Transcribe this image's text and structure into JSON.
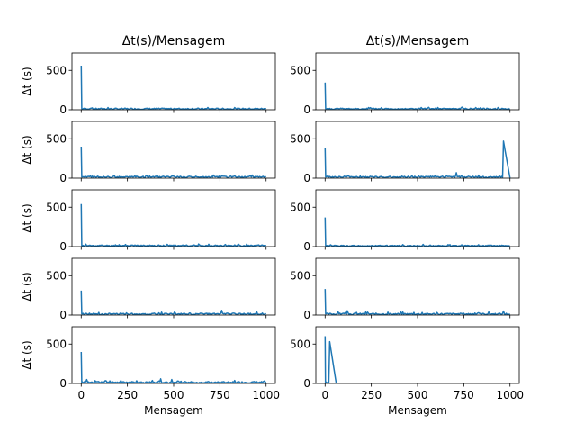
{
  "figure": {
    "series_color": "#1f77b4",
    "column_titles": [
      "Δt(s)/Mensagem",
      "Δt(s)/Mensagem"
    ],
    "ylabel": "Δt (s)",
    "xlabel": "Mensagem",
    "x_ticks": [
      0,
      250,
      500,
      750,
      1000
    ],
    "x_tick_labels": [
      "0",
      "250",
      "500",
      "750",
      "1000"
    ]
  },
  "chart_data": [
    {
      "type": "line",
      "row": 0,
      "col": 0,
      "xlim": [
        -50,
        1050
      ],
      "ylim": [
        0,
        720
      ],
      "y_ticks": [
        0,
        500
      ],
      "y_tick_labels": [
        "0",
        "500"
      ],
      "baseline": 12,
      "noise": 8,
      "peaks": [
        [
          0,
          560
        ],
        [
          3,
          10
        ]
      ],
      "tail": []
    },
    {
      "type": "line",
      "row": 0,
      "col": 1,
      "xlim": [
        -50,
        1050
      ],
      "ylim": [
        0,
        720
      ],
      "y_ticks": [
        0,
        500
      ],
      "y_tick_labels": [
        "0",
        "500"
      ],
      "baseline": 12,
      "noise": 8,
      "peaks": [
        [
          0,
          345
        ],
        [
          3,
          10
        ]
      ],
      "tail": []
    },
    {
      "type": "line",
      "row": 1,
      "col": 0,
      "xlim": [
        -50,
        1050
      ],
      "ylim": [
        0,
        720
      ],
      "y_ticks": [
        0,
        500
      ],
      "y_tick_labels": [
        "0",
        "500"
      ],
      "baseline": 15,
      "noise": 10,
      "peaks": [
        [
          0,
          400
        ],
        [
          3,
          12
        ]
      ],
      "tail": []
    },
    {
      "type": "line",
      "row": 1,
      "col": 1,
      "xlim": [
        -50,
        1050
      ],
      "ylim": [
        0,
        720
      ],
      "y_ticks": [
        0,
        500
      ],
      "y_tick_labels": [
        "0",
        "500"
      ],
      "baseline": 15,
      "noise": 10,
      "peaks": [
        [
          0,
          380
        ],
        [
          3,
          12
        ],
        [
          710,
          70
        ],
        [
          960,
          10
        ]
      ],
      "tail": [
        [
          965,
          470
        ],
        [
          975,
          330
        ],
        [
          1000,
          5
        ]
      ]
    },
    {
      "type": "line",
      "row": 2,
      "col": 0,
      "xlim": [
        -50,
        1050
      ],
      "ylim": [
        0,
        720
      ],
      "y_ticks": [
        0,
        500
      ],
      "y_tick_labels": [
        "0",
        "500"
      ],
      "baseline": 12,
      "noise": 8,
      "peaks": [
        [
          0,
          540
        ],
        [
          3,
          10
        ]
      ],
      "tail": []
    },
    {
      "type": "line",
      "row": 2,
      "col": 1,
      "xlim": [
        -50,
        1050
      ],
      "ylim": [
        0,
        720
      ],
      "y_ticks": [
        0,
        500
      ],
      "y_tick_labels": [
        "0",
        "500"
      ],
      "baseline": 10,
      "noise": 7,
      "peaks": [
        [
          0,
          370
        ],
        [
          3,
          10
        ]
      ],
      "tail": []
    },
    {
      "type": "line",
      "row": 3,
      "col": 0,
      "xlim": [
        -50,
        1050
      ],
      "ylim": [
        0,
        720
      ],
      "y_ticks": [
        0,
        500
      ],
      "y_tick_labels": [
        "0",
        "500"
      ],
      "baseline": 14,
      "noise": 10,
      "peaks": [
        [
          0,
          310
        ],
        [
          3,
          12
        ],
        [
          760,
          60
        ]
      ],
      "tail": []
    },
    {
      "type": "line",
      "row": 3,
      "col": 1,
      "xlim": [
        -50,
        1050
      ],
      "ylim": [
        0,
        720
      ],
      "y_ticks": [
        0,
        500
      ],
      "y_tick_labels": [
        "0",
        "500"
      ],
      "baseline": 14,
      "noise": 10,
      "peaks": [
        [
          0,
          330
        ],
        [
          3,
          12
        ],
        [
          120,
          55
        ],
        [
          965,
          50
        ]
      ],
      "tail": []
    },
    {
      "type": "line",
      "row": 4,
      "col": 0,
      "xlim": [
        -50,
        1050
      ],
      "ylim": [
        0,
        720
      ],
      "y_ticks": [
        0,
        500
      ],
      "y_tick_labels": [
        "0",
        "500"
      ],
      "baseline": 14,
      "noise": 10,
      "peaks": [
        [
          0,
          400
        ],
        [
          3,
          12
        ],
        [
          30,
          50
        ],
        [
          430,
          60
        ],
        [
          490,
          50
        ]
      ],
      "tail": []
    },
    {
      "type": "line",
      "row": 4,
      "col": 1,
      "xlim": [
        -50,
        1050
      ],
      "ylim": [
        0,
        720
      ],
      "y_ticks": [
        0,
        500
      ],
      "y_tick_labels": [
        "0",
        "500"
      ],
      "baseline": 12,
      "noise": 8,
      "peaks": [
        [
          0,
          600
        ],
        [
          2,
          0
        ]
      ],
      "tail": [
        [
          25,
          530
        ],
        [
          60,
          5
        ]
      ]
    }
  ]
}
